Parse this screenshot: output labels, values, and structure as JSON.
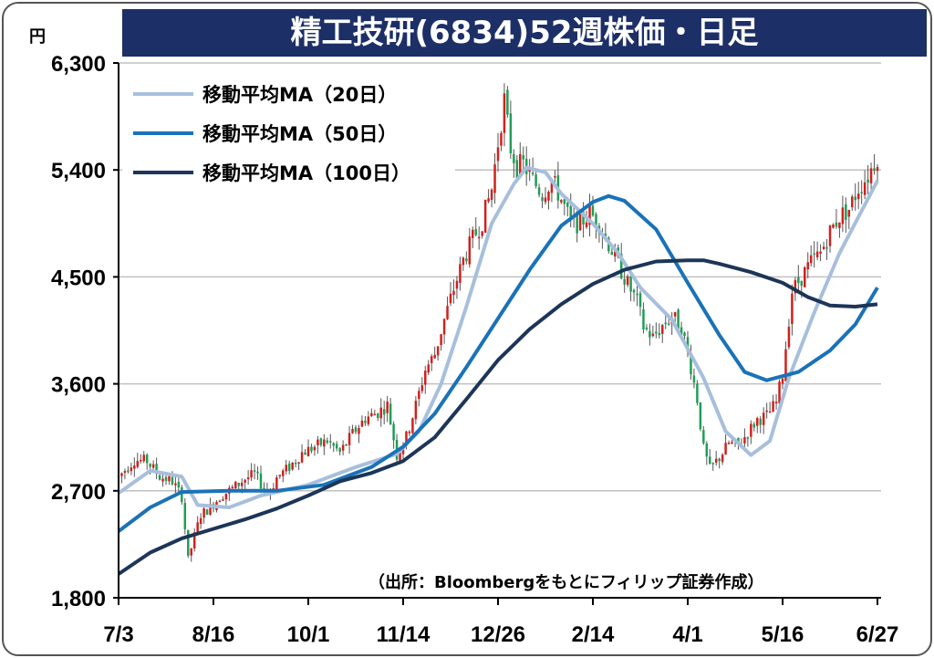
{
  "title": "精工技研(6834)52週株価・日足",
  "chart_data": {
    "type": "candlestick",
    "unit": "円",
    "ylim": [
      1800,
      6300
    ],
    "yticks": [
      1800,
      2700,
      3600,
      4500,
      5400,
      6300
    ],
    "ytick_labels": [
      "1,800",
      "2,700",
      "3,600",
      "4,500",
      "5,400",
      "6,300"
    ],
    "xticks": [
      {
        "label": "7/3",
        "index": 0
      },
      {
        "label": "8/16",
        "index": 30
      },
      {
        "label": "10/1",
        "index": 60
      },
      {
        "label": "11/14",
        "index": 90
      },
      {
        "label": "12/26",
        "index": 120
      },
      {
        "label": "2/14",
        "index": 150
      },
      {
        "label": "4/1",
        "index": 180
      },
      {
        "label": "5/16",
        "index": 210
      },
      {
        "label": "6/27",
        "index": 240
      }
    ],
    "n_days": 241,
    "grid": true,
    "legend_position": "top-left",
    "series": [
      {
        "name": "移動平均MA（20日）",
        "color": "#a7bfdc",
        "points": [
          [
            0,
            2680
          ],
          [
            10,
            2870
          ],
          [
            20,
            2820
          ],
          [
            25,
            2580
          ],
          [
            35,
            2560
          ],
          [
            45,
            2660
          ],
          [
            60,
            2750
          ],
          [
            75,
            2900
          ],
          [
            88,
            3010
          ],
          [
            95,
            3200
          ],
          [
            102,
            3600
          ],
          [
            110,
            4250
          ],
          [
            118,
            4950
          ],
          [
            125,
            5280
          ],
          [
            129,
            5420
          ],
          [
            135,
            5380
          ],
          [
            140,
            5200
          ],
          [
            150,
            4950
          ],
          [
            158,
            4700
          ],
          [
            165,
            4410
          ],
          [
            175,
            4140
          ],
          [
            185,
            3650
          ],
          [
            192,
            3200
          ],
          [
            200,
            3000
          ],
          [
            206,
            3120
          ],
          [
            212,
            3650
          ],
          [
            220,
            4200
          ],
          [
            228,
            4700
          ],
          [
            240,
            5310
          ]
        ]
      },
      {
        "name": "移動平均MA（50日）",
        "color": "#1a72b8",
        "points": [
          [
            0,
            2360
          ],
          [
            10,
            2560
          ],
          [
            20,
            2690
          ],
          [
            35,
            2700
          ],
          [
            50,
            2700
          ],
          [
            65,
            2750
          ],
          [
            80,
            2900
          ],
          [
            90,
            3070
          ],
          [
            100,
            3350
          ],
          [
            110,
            3740
          ],
          [
            120,
            4150
          ],
          [
            130,
            4560
          ],
          [
            140,
            4930
          ],
          [
            150,
            5130
          ],
          [
            155,
            5180
          ],
          [
            160,
            5140
          ],
          [
            170,
            4900
          ],
          [
            180,
            4450
          ],
          [
            190,
            4010
          ],
          [
            198,
            3700
          ],
          [
            205,
            3630
          ],
          [
            215,
            3700
          ],
          [
            225,
            3880
          ],
          [
            233,
            4100
          ],
          [
            240,
            4410
          ]
        ]
      },
      {
        "name": "移動平均MA（100日）",
        "color": "#1c3558",
        "points": [
          [
            0,
            2000
          ],
          [
            10,
            2180
          ],
          [
            20,
            2300
          ],
          [
            30,
            2380
          ],
          [
            40,
            2460
          ],
          [
            50,
            2550
          ],
          [
            60,
            2660
          ],
          [
            70,
            2780
          ],
          [
            80,
            2850
          ],
          [
            90,
            2950
          ],
          [
            100,
            3150
          ],
          [
            110,
            3470
          ],
          [
            120,
            3800
          ],
          [
            130,
            4060
          ],
          [
            140,
            4270
          ],
          [
            150,
            4440
          ],
          [
            160,
            4560
          ],
          [
            170,
            4630
          ],
          [
            180,
            4640
          ],
          [
            185,
            4640
          ],
          [
            190,
            4610
          ],
          [
            200,
            4540
          ],
          [
            210,
            4450
          ],
          [
            218,
            4330
          ],
          [
            225,
            4260
          ],
          [
            233,
            4250
          ],
          [
            240,
            4270
          ]
        ]
      }
    ],
    "candle_anchors": [
      [
        0,
        2820
      ],
      [
        5,
        2960
      ],
      [
        9,
        2950
      ],
      [
        13,
        2820
      ],
      [
        17,
        2780
      ],
      [
        20,
        2650
      ],
      [
        22,
        2120
      ],
      [
        24,
        2320
      ],
      [
        26,
        2500
      ],
      [
        29,
        2560
      ],
      [
        32,
        2650
      ],
      [
        36,
        2720
      ],
      [
        40,
        2800
      ],
      [
        43,
        2840
      ],
      [
        46,
        2720
      ],
      [
        48,
        2700
      ],
      [
        50,
        2810
      ],
      [
        54,
        2900
      ],
      [
        58,
        3020
      ],
      [
        62,
        3070
      ],
      [
        66,
        3120
      ],
      [
        70,
        3020
      ],
      [
        74,
        3180
      ],
      [
        78,
        3310
      ],
      [
        82,
        3360
      ],
      [
        85,
        3420
      ],
      [
        88,
        3000
      ],
      [
        91,
        3150
      ],
      [
        94,
        3420
      ],
      [
        97,
        3720
      ],
      [
        100,
        3850
      ],
      [
        103,
        4140
      ],
      [
        106,
        4400
      ],
      [
        109,
        4640
      ],
      [
        112,
        4820
      ],
      [
        115,
        4970
      ],
      [
        118,
        5240
      ],
      [
        120,
        5630
      ],
      [
        122,
        5990
      ],
      [
        124,
        5580
      ],
      [
        126,
        5430
      ],
      [
        128,
        5450
      ],
      [
        131,
        5310
      ],
      [
        134,
        5200
      ],
      [
        137,
        5320
      ],
      [
        140,
        5150
      ],
      [
        143,
        4960
      ],
      [
        146,
        4950
      ],
      [
        149,
        5040
      ],
      [
        152,
        4950
      ],
      [
        155,
        4780
      ],
      [
        158,
        4610
      ],
      [
        161,
        4440
      ],
      [
        164,
        4290
      ],
      [
        166,
        4080
      ],
      [
        169,
        3990
      ],
      [
        172,
        4090
      ],
      [
        175,
        4170
      ],
      [
        178,
        4080
      ],
      [
        181,
        3740
      ],
      [
        183,
        3470
      ],
      [
        185,
        3050
      ],
      [
        187,
        2880
      ],
      [
        190,
        2980
      ],
      [
        193,
        3100
      ],
      [
        196,
        3080
      ],
      [
        199,
        3190
      ],
      [
        202,
        3300
      ],
      [
        205,
        3330
      ],
      [
        208,
        3440
      ],
      [
        210,
        3680
      ],
      [
        213,
        4380
      ],
      [
        216,
        4500
      ],
      [
        219,
        4620
      ],
      [
        222,
        4700
      ],
      [
        225,
        4880
      ],
      [
        228,
        5010
      ],
      [
        231,
        5070
      ],
      [
        234,
        5250
      ],
      [
        237,
        5350
      ],
      [
        240,
        5520
      ]
    ],
    "source_note": "（出所：Bloombergをもとにフィリップ証券作成）"
  }
}
